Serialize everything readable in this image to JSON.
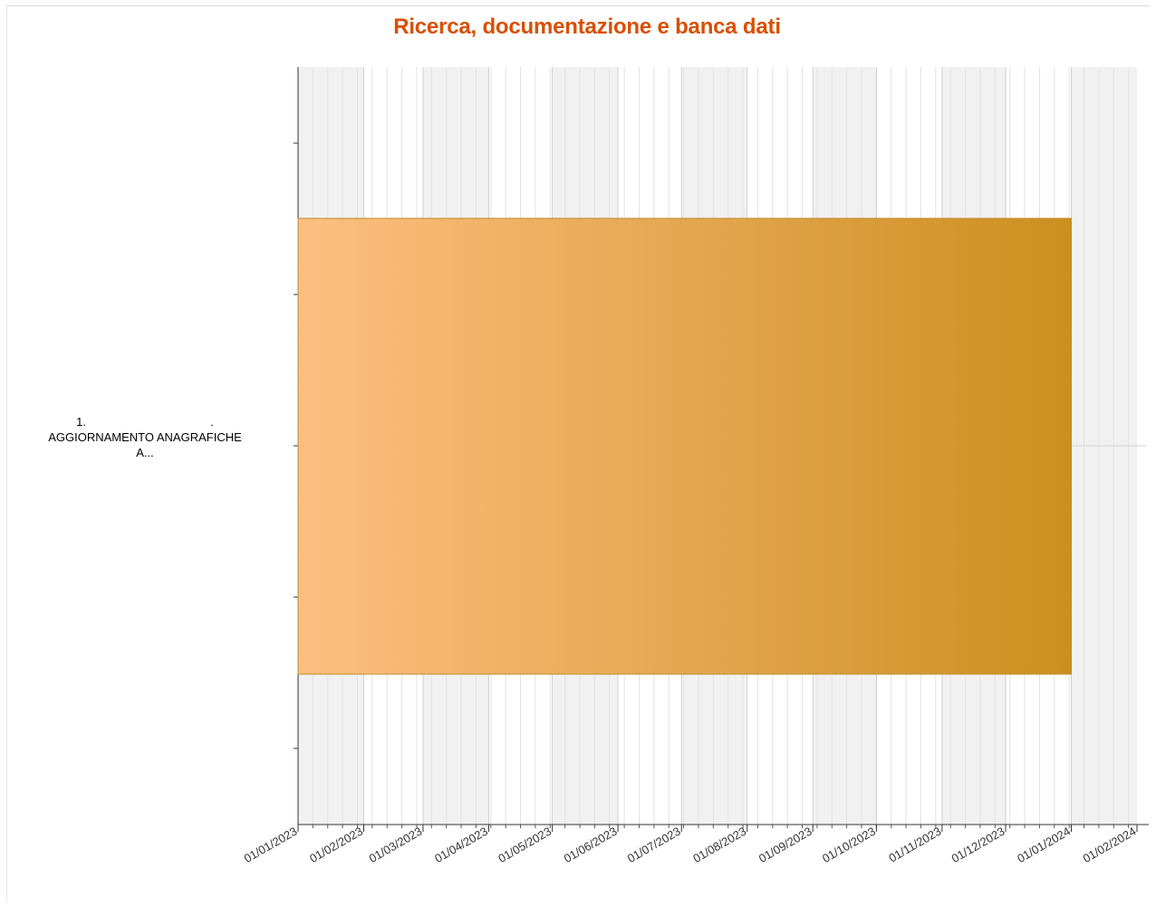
{
  "chart_data": {
    "type": "gantt",
    "title": "Ricerca, documentazione e banca dati",
    "xlabel": "",
    "ylabel": "",
    "x_axis": {
      "type": "date",
      "min": "2023-01-01",
      "max": "2024-02-01",
      "tick_labels": [
        "01/01/2023",
        "01/02/2023",
        "01/03/2023",
        "01/04/2023",
        "01/05/2023",
        "01/06/2023",
        "01/07/2023",
        "01/08/2023",
        "01/09/2023",
        "01/10/2023",
        "01/11/2023",
        "01/12/2023",
        "01/01/2024",
        "01/02/2024"
      ]
    },
    "alternating_month_shading": true,
    "grid": true,
    "tasks": [
      {
        "label_lines": [
          "1.                                      .",
          "AGGIORNAMENTO ANAGRAFICHE",
          "A..."
        ],
        "start": "2023-01-01",
        "end": "2024-01-01",
        "color_start": "#fdbf80",
        "color_end": "#cc8f1f"
      }
    ]
  }
}
